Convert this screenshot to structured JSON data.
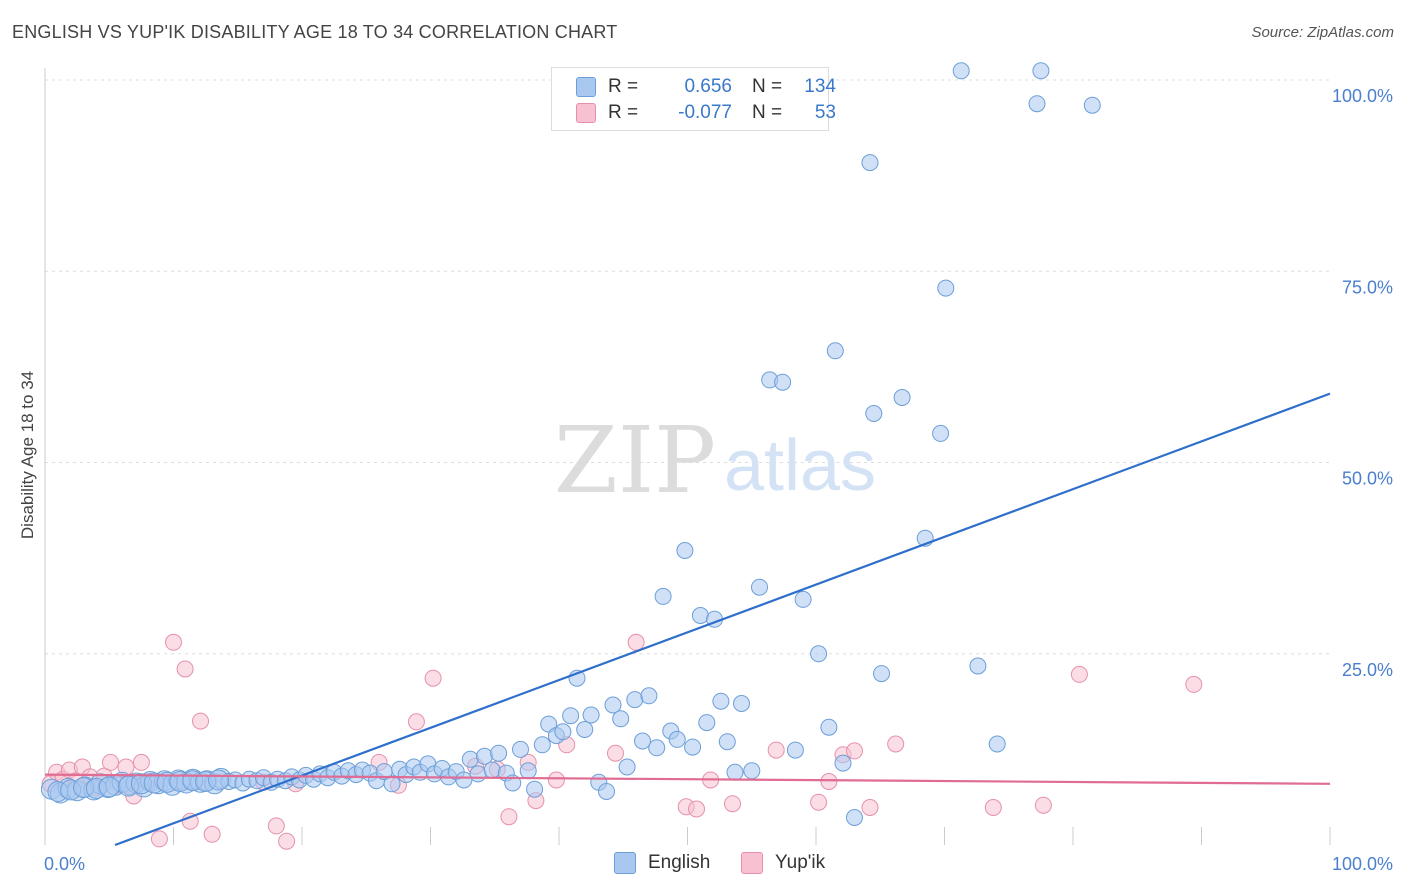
{
  "title": "ENGLISH VS YUP'IK DISABILITY AGE 18 TO 34 CORRELATION CHART",
  "source": "Source: ZipAtlas.com",
  "watermark": {
    "zip": "ZIP",
    "atlas": "atlas"
  },
  "legend": {
    "r_label": "R =",
    "n_label": "N =",
    "rows": [
      {
        "name": "English",
        "r": "0.656",
        "n": "134",
        "color": "#a9c8f0",
        "border": "#6c9fd8"
      },
      {
        "name": "Yup'ik",
        "r": "-0.077",
        "n": "53",
        "color": "#f7c1d1",
        "border": "#e591ab"
      }
    ]
  },
  "chart_data": {
    "type": "scatter",
    "title": "ENGLISH VS YUP'IK DISABILITY AGE 18 TO 34 CORRELATION CHART",
    "xlabel": "",
    "ylabel": "Disability Age 18 to 34",
    "xlim": [
      0,
      100
    ],
    "ylim": [
      0,
      100
    ],
    "x_tick_labels": [
      "0.0%",
      "100.0%"
    ],
    "y_tick_labels": [
      "25.0%",
      "50.0%",
      "75.0%",
      "100.0%"
    ],
    "y_ticks": [
      25,
      50,
      75,
      100
    ],
    "grid": true,
    "legend_position": "bottom",
    "series": [
      {
        "name": "English",
        "color": "#6c9fd8",
        "fill": "#a9c8f0",
        "trend": {
          "x": [
            0,
            100
          ],
          "y": [
            -3.4,
            59.0
          ],
          "color": "#2f6fcc"
        },
        "points": [
          [
            0.5,
            7.3
          ],
          [
            1.2,
            6.8
          ],
          [
            1.8,
            7.4
          ],
          [
            2.5,
            7.1
          ],
          [
            3.1,
            7.6
          ],
          [
            3.8,
            7.2
          ],
          [
            4.3,
            8.0
          ],
          [
            4.9,
            7.5
          ],
          [
            5.5,
            7.8
          ],
          [
            6.0,
            8.2
          ],
          [
            6.6,
            7.9
          ],
          [
            7.1,
            8.1
          ],
          [
            7.7,
            7.6
          ],
          [
            8.2,
            8.3
          ],
          [
            8.8,
            8.0
          ],
          [
            9.3,
            8.4
          ],
          [
            9.9,
            7.8
          ],
          [
            10.4,
            8.5
          ],
          [
            11.0,
            8.1
          ],
          [
            11.5,
            8.6
          ],
          [
            12.1,
            8.2
          ],
          [
            12.6,
            8.4
          ],
          [
            13.2,
            8.0
          ],
          [
            13.7,
            8.7
          ],
          [
            14.3,
            8.3
          ],
          [
            14.8,
            8.5
          ],
          [
            15.4,
            8.1
          ],
          [
            15.9,
            8.6
          ],
          [
            16.5,
            8.4
          ],
          [
            17.0,
            8.8
          ],
          [
            17.6,
            8.2
          ],
          [
            18.1,
            8.6
          ],
          [
            18.7,
            8.4
          ],
          [
            19.2,
            8.9
          ],
          [
            19.8,
            8.5
          ],
          [
            20.3,
            9.1
          ],
          [
            20.9,
            8.6
          ],
          [
            21.4,
            9.3
          ],
          [
            22.0,
            8.8
          ],
          [
            22.5,
            9.5
          ],
          [
            23.1,
            9.0
          ],
          [
            23.6,
            9.7
          ],
          [
            24.2,
            9.2
          ],
          [
            24.7,
            9.8
          ],
          [
            25.3,
            9.4
          ],
          [
            25.8,
            8.4
          ],
          [
            26.4,
            9.6
          ],
          [
            27.0,
            8.0
          ],
          [
            27.6,
            9.9
          ],
          [
            28.1,
            9.2
          ],
          [
            28.7,
            10.2
          ],
          [
            29.2,
            9.5
          ],
          [
            29.8,
            10.6
          ],
          [
            30.3,
            9.3
          ],
          [
            30.9,
            10.0
          ],
          [
            31.4,
            8.9
          ],
          [
            32.0,
            9.6
          ],
          [
            32.6,
            8.5
          ],
          [
            33.1,
            11.2
          ],
          [
            33.7,
            9.3
          ],
          [
            34.2,
            11.6
          ],
          [
            34.8,
            9.8
          ],
          [
            35.3,
            12.0
          ],
          [
            35.9,
            9.4
          ],
          [
            36.4,
            8.1
          ],
          [
            37.0,
            12.5
          ],
          [
            37.6,
            9.7
          ],
          [
            38.1,
            7.3
          ],
          [
            38.7,
            13.1
          ],
          [
            39.2,
            15.8
          ],
          [
            39.8,
            14.3
          ],
          [
            40.3,
            14.8
          ],
          [
            40.9,
            16.9
          ],
          [
            41.4,
            21.8
          ],
          [
            42.0,
            15.1
          ],
          [
            42.5,
            17.0
          ],
          [
            43.1,
            8.2
          ],
          [
            43.7,
            7.0
          ],
          [
            44.2,
            18.3
          ],
          [
            44.8,
            16.5
          ],
          [
            45.3,
            10.2
          ],
          [
            45.9,
            19.0
          ],
          [
            46.5,
            13.6
          ],
          [
            47.0,
            19.5
          ],
          [
            47.6,
            12.7
          ],
          [
            48.1,
            32.5
          ],
          [
            48.7,
            14.9
          ],
          [
            49.2,
            13.8
          ],
          [
            49.8,
            38.5
          ],
          [
            50.4,
            12.8
          ],
          [
            51.0,
            30.0
          ],
          [
            51.5,
            16.0
          ],
          [
            52.1,
            29.5
          ],
          [
            52.6,
            18.8
          ],
          [
            53.1,
            13.5
          ],
          [
            53.7,
            9.5
          ],
          [
            54.2,
            18.5
          ],
          [
            55.0,
            9.7
          ],
          [
            55.6,
            33.7
          ],
          [
            56.4,
            60.8
          ],
          [
            57.4,
            60.5
          ],
          [
            58.4,
            12.4
          ],
          [
            59.0,
            32.1
          ],
          [
            60.2,
            25.0
          ],
          [
            61.0,
            15.4
          ],
          [
            61.5,
            64.6
          ],
          [
            62.1,
            10.7
          ],
          [
            63.0,
            3.6
          ],
          [
            64.2,
            89.2
          ],
          [
            64.5,
            56.4
          ],
          [
            65.1,
            22.4
          ],
          [
            66.7,
            58.5
          ],
          [
            68.5,
            40.1
          ],
          [
            69.7,
            53.8
          ],
          [
            70.1,
            72.8
          ],
          [
            71.3,
            101.2
          ],
          [
            72.6,
            23.4
          ],
          [
            74.1,
            13.2
          ],
          [
            77.5,
            101.2
          ],
          [
            77.2,
            96.9
          ],
          [
            81.5,
            96.7
          ],
          [
            1.0,
            7.0
          ],
          [
            2.0,
            7.2
          ],
          [
            3.0,
            7.5
          ],
          [
            4.0,
            7.4
          ],
          [
            5.0,
            7.6
          ],
          [
            6.5,
            7.7
          ],
          [
            7.5,
            8.0
          ],
          [
            8.5,
            8.1
          ],
          [
            9.5,
            8.2
          ],
          [
            10.5,
            8.3
          ],
          [
            11.5,
            8.4
          ],
          [
            12.5,
            8.3
          ],
          [
            13.5,
            8.5
          ]
        ]
      },
      {
        "name": "Yup'ik",
        "color": "#e591ab",
        "fill": "#f7c1d1",
        "trend": {
          "x": [
            0,
            100
          ],
          "y": [
            9.2,
            8.0
          ],
          "color": "#e06b93"
        },
        "points": [
          [
            0.4,
            8.0
          ],
          [
            0.9,
            9.5
          ],
          [
            1.4,
            8.6
          ],
          [
            1.9,
            9.8
          ],
          [
            2.4,
            8.4
          ],
          [
            2.9,
            10.2
          ],
          [
            3.5,
            8.9
          ],
          [
            4.0,
            7.5
          ],
          [
            4.6,
            9.0
          ],
          [
            5.1,
            10.8
          ],
          [
            5.7,
            7.8
          ],
          [
            6.3,
            10.2
          ],
          [
            6.9,
            6.4
          ],
          [
            7.5,
            10.8
          ],
          [
            8.1,
            8.3
          ],
          [
            8.9,
            0.8
          ],
          [
            10.0,
            26.5
          ],
          [
            10.9,
            23.0
          ],
          [
            11.3,
            3.1
          ],
          [
            12.1,
            16.2
          ],
          [
            13.0,
            1.4
          ],
          [
            17.0,
            8.2
          ],
          [
            18.0,
            2.5
          ],
          [
            18.8,
            0.5
          ],
          [
            19.5,
            8.0
          ],
          [
            26.0,
            10.8
          ],
          [
            27.5,
            7.8
          ],
          [
            28.9,
            16.1
          ],
          [
            30.2,
            21.8
          ],
          [
            33.5,
            10.3
          ],
          [
            35.2,
            9.9
          ],
          [
            36.1,
            3.7
          ],
          [
            37.6,
            10.8
          ],
          [
            38.2,
            5.8
          ],
          [
            39.8,
            8.5
          ],
          [
            40.6,
            13.1
          ],
          [
            44.4,
            12.0
          ],
          [
            46.0,
            26.5
          ],
          [
            49.9,
            5.0
          ],
          [
            50.7,
            4.7
          ],
          [
            51.8,
            8.5
          ],
          [
            53.5,
            5.4
          ],
          [
            56.9,
            12.4
          ],
          [
            60.2,
            5.6
          ],
          [
            61.0,
            8.3
          ],
          [
            62.1,
            11.8
          ],
          [
            63.0,
            12.3
          ],
          [
            64.2,
            4.9
          ],
          [
            66.2,
            13.2
          ],
          [
            73.8,
            4.9
          ],
          [
            77.7,
            5.2
          ],
          [
            80.5,
            22.3
          ],
          [
            89.4,
            21.0
          ]
        ]
      }
    ]
  }
}
